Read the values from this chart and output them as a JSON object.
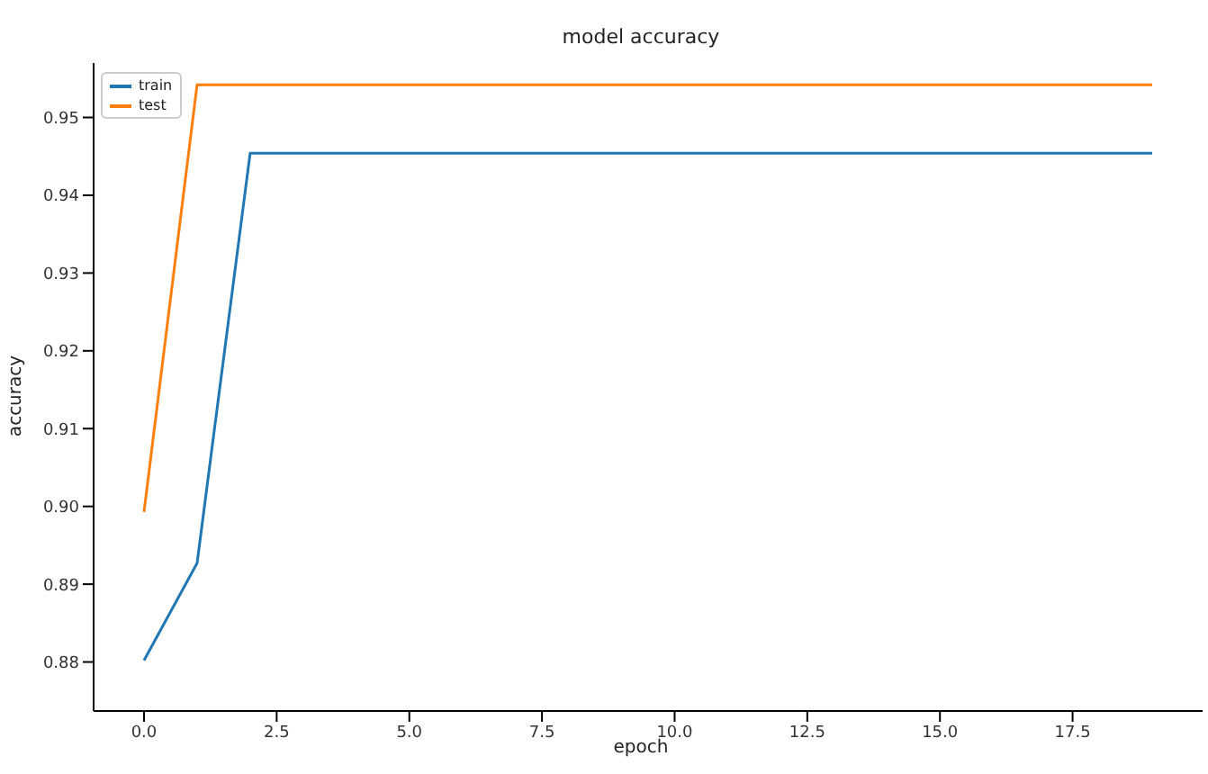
{
  "chart_data": {
    "type": "line",
    "title": "model accuracy",
    "xlabel": "epoch",
    "ylabel": "accuracy",
    "x": [
      0,
      1,
      2,
      3,
      4,
      5,
      6,
      7,
      8,
      9,
      10,
      11,
      12,
      13,
      14,
      15,
      16,
      17,
      18,
      19
    ],
    "series": [
      {
        "name": "train",
        "color": "#1f77b4",
        "values": [
          0.8802,
          0.8927,
          0.9454,
          0.9454,
          0.9454,
          0.9454,
          0.9454,
          0.9454,
          0.9454,
          0.9454,
          0.9454,
          0.9454,
          0.9454,
          0.9454,
          0.9454,
          0.9454,
          0.9454,
          0.9454,
          0.9454,
          0.9454
        ]
      },
      {
        "name": "test",
        "color": "#ff7f0e",
        "values": [
          0.8993,
          0.9542,
          0.9542,
          0.9542,
          0.9542,
          0.9542,
          0.9542,
          0.9542,
          0.9542,
          0.9542,
          0.9542,
          0.9542,
          0.9542,
          0.9542,
          0.9542,
          0.9542,
          0.9542,
          0.9542,
          0.9542,
          0.9542
        ]
      }
    ],
    "xlim": [
      -0.95,
      19.95
    ],
    "xticks": [
      {
        "value": 0,
        "label": "0.0"
      },
      {
        "value": 2.5,
        "label": "2.5"
      },
      {
        "value": 5,
        "label": "5.0"
      },
      {
        "value": 7.5,
        "label": "7.5"
      },
      {
        "value": 10,
        "label": "10.0"
      },
      {
        "value": 12.5,
        "label": "12.5"
      },
      {
        "value": 15,
        "label": "15.0"
      },
      {
        "value": 17.5,
        "label": "17.5"
      }
    ],
    "ylim": [
      0.8737,
      0.957
    ],
    "yticks": [
      {
        "value": 0.88,
        "label": "0.88"
      },
      {
        "value": 0.89,
        "label": "0.89"
      },
      {
        "value": 0.9,
        "label": "0.90"
      },
      {
        "value": 0.91,
        "label": "0.91"
      },
      {
        "value": 0.92,
        "label": "0.92"
      },
      {
        "value": 0.93,
        "label": "0.93"
      },
      {
        "value": 0.94,
        "label": "0.94"
      },
      {
        "value": 0.95,
        "label": "0.95"
      }
    ],
    "grid": false,
    "legend": "top left",
    "marker": "none",
    "line_style": "solid"
  }
}
